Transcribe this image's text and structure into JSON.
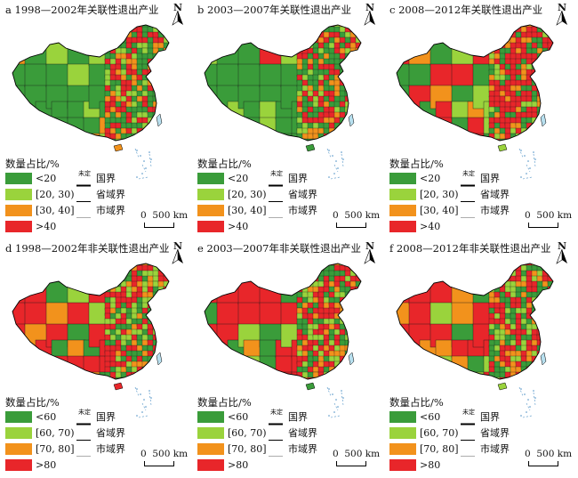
{
  "panels": [
    {
      "title": "a 1998—2002年关联性退出产业",
      "legend_title": "数量占比/%",
      "legend": [
        "<20",
        "[20, 30)",
        "[30, 40]",
        ">40"
      ],
      "palette": "dominant_low"
    },
    {
      "title": "b 2003—2007年关联性退出产业",
      "legend_title": "数量占比/%",
      "legend": [
        "<20",
        "[20, 30)",
        "[30, 40]",
        ">40"
      ],
      "palette": "dominant_low"
    },
    {
      "title": "c 2008—2012年关联性退出产业",
      "legend_title": "数量占比/%",
      "legend": [
        "<20",
        "[20, 30)",
        "[30, 40]",
        ">40"
      ],
      "palette": "mixed"
    },
    {
      "title": "d 1998—2002年非关联性退出产业",
      "legend_title": "数量占比/%",
      "legend": [
        "<60",
        "[60, 70)",
        "[70, 80]",
        ">80"
      ],
      "palette": "dominant_high"
    },
    {
      "title": "e 2003—2007年非关联性退出产业",
      "legend_title": "数量占比/%",
      "legend": [
        "<60",
        "[60, 70)",
        "[70, 80]",
        ">80"
      ],
      "palette": "dominant_high"
    },
    {
      "title": "f 2008—2012年非关联性退出产业",
      "legend_title": "数量占比/%",
      "legend": [
        "<60",
        "[60, 70)",
        "[70, 80]",
        ">80"
      ],
      "palette": "mixed_high"
    }
  ],
  "boundary_legend": {
    "undetermined": "未定",
    "national": "国界",
    "provincial": "省域界",
    "municipal": "市域界"
  },
  "north_label": "N",
  "scale": {
    "zero": "0",
    "distance": "500 km"
  },
  "colors": {
    "class1": "#3a9c3a",
    "class2": "#9ad33c",
    "class3": "#f2921c",
    "class4": "#e8262a",
    "boundary": "#1a1a1a"
  }
}
